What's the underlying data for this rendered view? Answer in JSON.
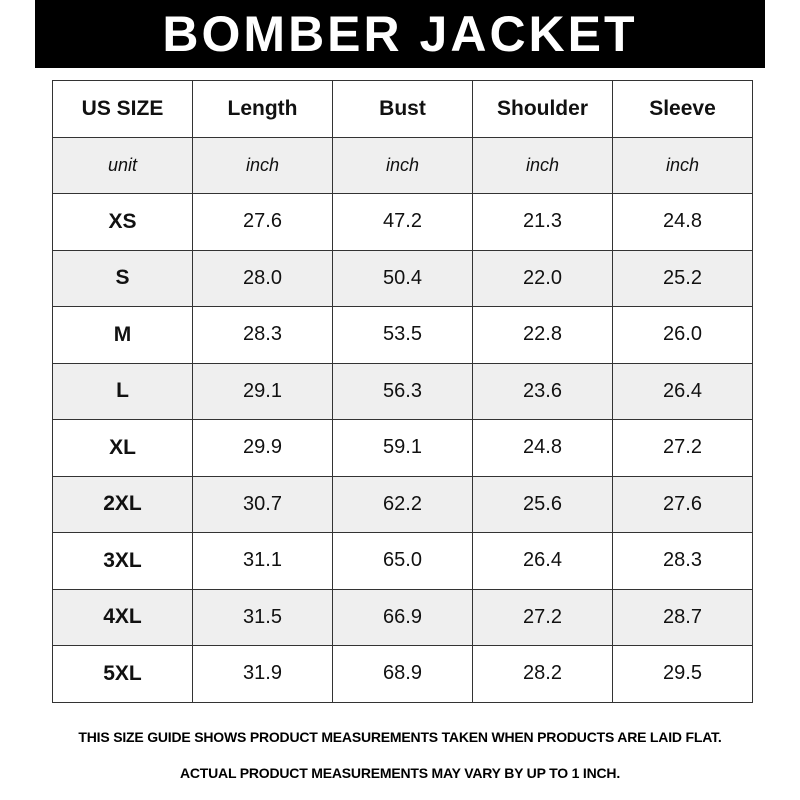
{
  "title": "BOMBER JACKET",
  "table": {
    "headers": [
      "US SIZE",
      "Length",
      "Bust",
      "Shoulder",
      "Sleeve"
    ],
    "units": [
      "unit",
      "inch",
      "inch",
      "inch",
      "inch"
    ],
    "rows": [
      [
        "XS",
        "27.6",
        "47.2",
        "21.3",
        "24.8"
      ],
      [
        "S",
        "28.0",
        "50.4",
        "22.0",
        "25.2"
      ],
      [
        "M",
        "28.3",
        "53.5",
        "22.8",
        "26.0"
      ],
      [
        "L",
        "29.1",
        "56.3",
        "23.6",
        "26.4"
      ],
      [
        "XL",
        "29.9",
        "59.1",
        "24.8",
        "27.2"
      ],
      [
        "2XL",
        "30.7",
        "62.2",
        "25.6",
        "27.6"
      ],
      [
        "3XL",
        "31.1",
        "65.0",
        "26.4",
        "28.3"
      ],
      [
        "4XL",
        "31.5",
        "66.9",
        "27.2",
        "28.7"
      ],
      [
        "5XL",
        "31.9",
        "68.9",
        "28.2",
        "29.5"
      ]
    ]
  },
  "footer": {
    "line1": "THIS SIZE GUIDE SHOWS PRODUCT MEASUREMENTS TAKEN WHEN PRODUCTS ARE LAID FLAT.",
    "line2": "ACTUAL PRODUCT MEASUREMENTS MAY VARY BY UP TO 1 INCH."
  },
  "colors": {
    "banner": "#000000",
    "stripe": "#efefef"
  }
}
